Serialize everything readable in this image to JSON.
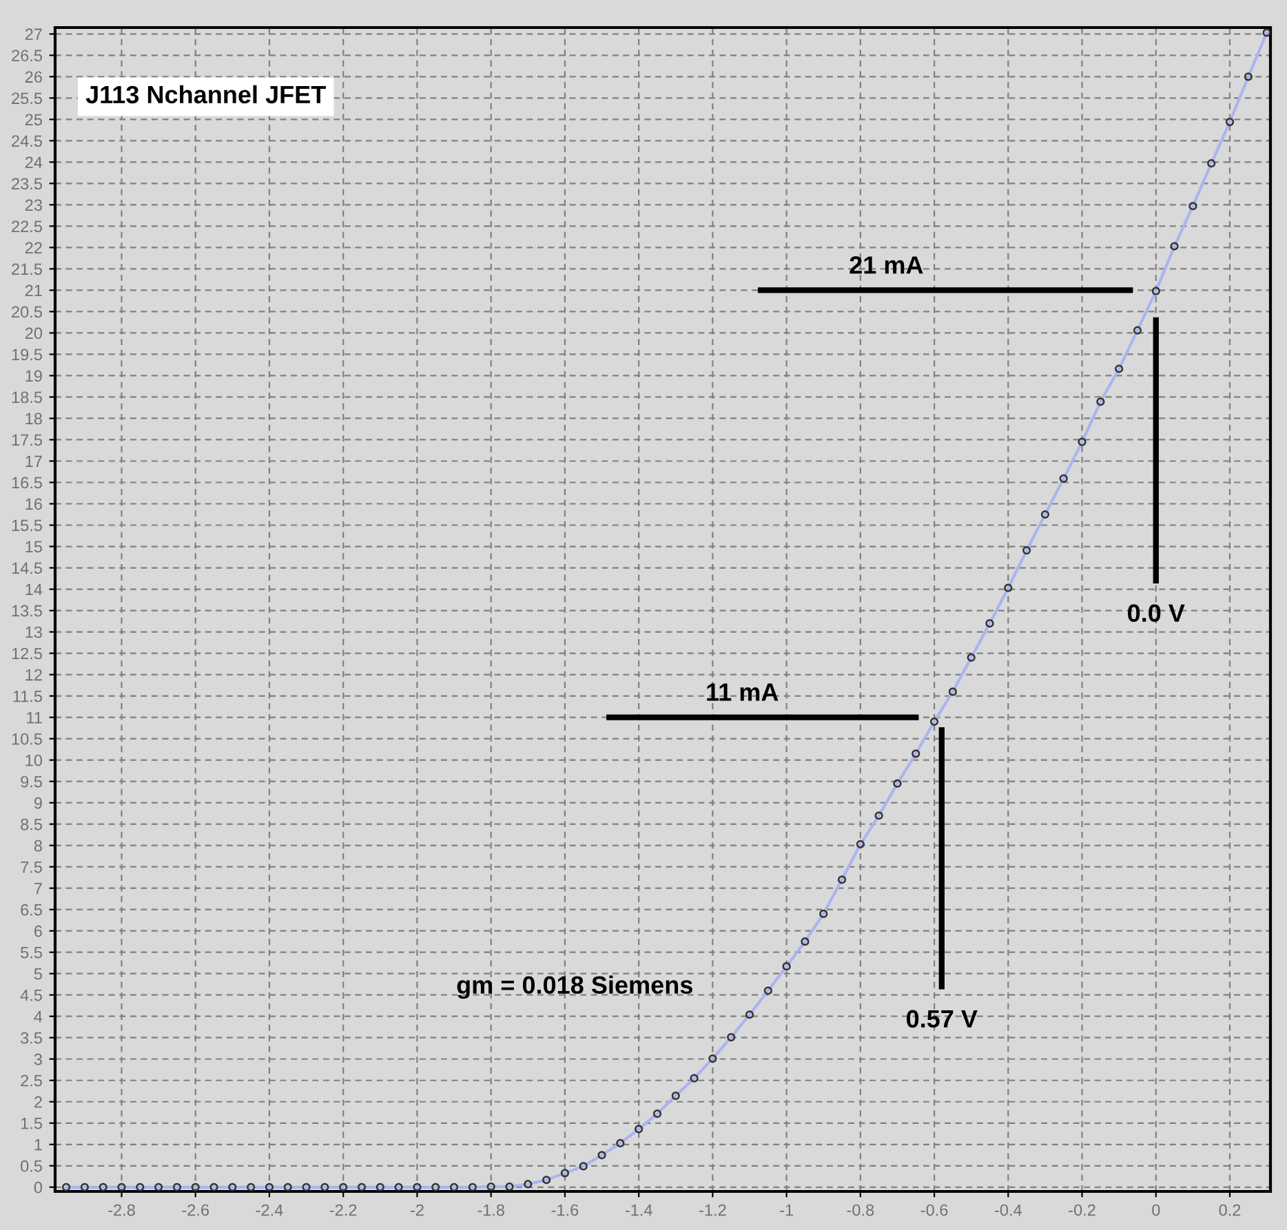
{
  "chart_data": {
    "type": "line",
    "title": "J113 Nchannel JFET",
    "xlim": [
      -2.98,
      0.31
    ],
    "ylim": [
      -0.1,
      27.15
    ],
    "xticks": [
      -2.8,
      -2.6,
      -2.4,
      -2.2,
      -2,
      -1.8,
      -1.6,
      -1.4,
      -1.2,
      -1,
      -0.8,
      -0.6,
      -0.4,
      -0.2,
      0,
      0.2
    ],
    "yticks": [
      0,
      0.5,
      1,
      1.5,
      2,
      2.5,
      3,
      3.5,
      4,
      4.5,
      5,
      5.5,
      6,
      6.5,
      7,
      7.5,
      8,
      8.5,
      9,
      9.5,
      10,
      10.5,
      11,
      11.5,
      12,
      12.5,
      13,
      13.5,
      14,
      14.5,
      15,
      15.5,
      16,
      16.5,
      17,
      17.5,
      18,
      18.5,
      19,
      19.5,
      20,
      20.5,
      21,
      21.5,
      22,
      22.5,
      23,
      23.5,
      24,
      24.5,
      25,
      25.5,
      26,
      26.5,
      27
    ],
    "grid": true,
    "marker": "circle",
    "line_style": "solid",
    "series": [
      {
        "color": "#aab4f0",
        "x": [
          -2.95,
          -2.9,
          -2.85,
          -2.8,
          -2.75,
          -2.7,
          -2.65,
          -2.6,
          -2.55,
          -2.5,
          -2.45,
          -2.4,
          -2.35,
          -2.3,
          -2.25,
          -2.2,
          -2.15,
          -2.1,
          -2.05,
          -2.0,
          -1.95,
          -1.9,
          -1.85,
          -1.8,
          -1.75,
          -1.7,
          -1.65,
          -1.6,
          -1.55,
          -1.5,
          -1.45,
          -1.4,
          -1.35,
          -1.3,
          -1.25,
          -1.2,
          -1.15,
          -1.1,
          -1.05,
          -1.0,
          -0.95,
          -0.9,
          -0.85,
          -0.8,
          -0.75,
          -0.7,
          -0.65,
          -0.6,
          -0.55,
          -0.5,
          -0.45,
          -0.4,
          -0.35,
          -0.3,
          -0.25,
          -0.2,
          -0.15,
          -0.1,
          -0.05,
          0,
          0.05,
          0.1,
          0.15,
          0.2,
          0.25,
          0.3
        ],
        "values": [
          0,
          0,
          0,
          0,
          0,
          0,
          0,
          0,
          0,
          0,
          0,
          0,
          0,
          0,
          0,
          0,
          0,
          0,
          0,
          0,
          0,
          0,
          0,
          0.01,
          0.01,
          0.07,
          0.17,
          0.33,
          0.49,
          0.75,
          1.03,
          1.36,
          1.72,
          2.14,
          2.55,
          3.01,
          3.51,
          4.04,
          4.6,
          5.17,
          5.75,
          6.4,
          7.2,
          8.03,
          8.7,
          9.45,
          10.15,
          10.9,
          11.6,
          12.4,
          13.2,
          14.03,
          14.91,
          15.75,
          16.59,
          17.45,
          18.39,
          19.16,
          20.06,
          20.98,
          22.03,
          22.97,
          23.97,
          24.94,
          26.0,
          27.03
        ]
      },
      {
        "color": "#000000",
        "marker": "none",
        "x": [
          -1.07,
          -0.07
        ],
        "values": [
          21,
          21
        ]
      },
      {
        "color": "#000000",
        "marker": "none",
        "x": [
          0,
          0
        ],
        "values": [
          14.2,
          20.3
        ]
      },
      {
        "color": "#000000",
        "marker": "none",
        "x": [
          -1.48,
          -0.65
        ],
        "values": [
          11,
          11
        ]
      },
      {
        "color": "#000000",
        "marker": "none",
        "x": [
          -0.58,
          -0.58
        ],
        "values": [
          4.7,
          10.7
        ]
      }
    ],
    "annotations": [
      {
        "text": "21 mA",
        "x": -0.73,
        "y": 21
      },
      {
        "text": "0.0 V",
        "x": 0,
        "y": 14.2
      },
      {
        "text": "11 mA",
        "x": -1.12,
        "y": 11
      },
      {
        "text": "0.57 V",
        "x": -0.58,
        "y": 4.7
      },
      "gm = 0.018 Siemens"
    ]
  }
}
